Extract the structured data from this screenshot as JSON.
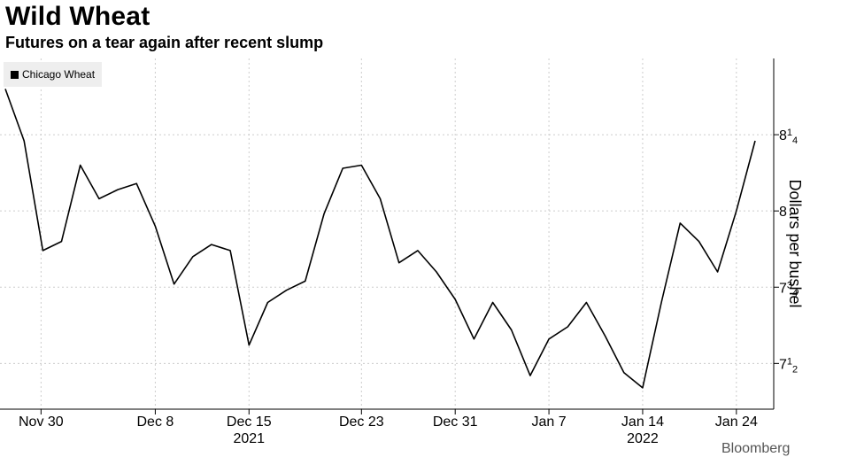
{
  "header": {
    "title": "Wild Wheat",
    "subtitle": "Futures on a tear again after recent slump"
  },
  "legend": {
    "label": "Chicago Wheat"
  },
  "source": "Bloomberg",
  "colors": {
    "line": "#000000",
    "grid": "#cccccc",
    "legend_bg": "#eeeeee"
  },
  "chart_data": {
    "type": "line",
    "title": "Wild Wheat",
    "subtitle": "Futures on a tear again after recent slump",
    "ylabel": "Dollars per bushel",
    "ylim": [
      7.35,
      8.5
    ],
    "yticks": [
      {
        "value": 7.5,
        "whole": "7",
        "num": "1",
        "den": "2"
      },
      {
        "value": 7.75,
        "whole": "7",
        "num": "3",
        "den": "4"
      },
      {
        "value": 8.0,
        "whole": "8",
        "num": "",
        "den": ""
      },
      {
        "value": 8.25,
        "whole": "8",
        "num": "1",
        "den": "4"
      }
    ],
    "xrange": [
      0,
      40
    ],
    "xticks": [
      {
        "pos": 2,
        "label": "Nov 30",
        "year": ""
      },
      {
        "pos": 8,
        "label": "Dec 8",
        "year": ""
      },
      {
        "pos": 13,
        "label": "Dec 15",
        "year": "2021"
      },
      {
        "pos": 19,
        "label": "Dec 23",
        "year": ""
      },
      {
        "pos": 24,
        "label": "Dec 31",
        "year": ""
      },
      {
        "pos": 29,
        "label": "Jan 7",
        "year": ""
      },
      {
        "pos": 34,
        "label": "Jan 14",
        "year": "2022"
      },
      {
        "pos": 39,
        "label": "Jan 24",
        "year": ""
      }
    ],
    "series": [
      {
        "name": "Chicago Wheat",
        "x": [
          0,
          1,
          2,
          3,
          4,
          5,
          6,
          7,
          8,
          9,
          10,
          11,
          12,
          13,
          14,
          15,
          16,
          17,
          18,
          19,
          20,
          21,
          22,
          23,
          24,
          25,
          26,
          27,
          28,
          29,
          30,
          31,
          32,
          33,
          34,
          35,
          36,
          37,
          38,
          39,
          40
        ],
        "values": [
          8.4,
          8.23,
          7.87,
          7.9,
          8.15,
          8.04,
          8.07,
          8.09,
          7.95,
          7.76,
          7.85,
          7.89,
          7.87,
          7.56,
          7.7,
          7.74,
          7.77,
          7.99,
          8.14,
          8.15,
          8.04,
          7.83,
          7.87,
          7.8,
          7.71,
          7.58,
          7.7,
          7.61,
          7.46,
          7.58,
          7.62,
          7.7,
          7.59,
          7.47,
          7.42,
          7.7,
          7.96,
          7.9,
          7.8,
          8.0,
          8.23
        ]
      }
    ]
  }
}
